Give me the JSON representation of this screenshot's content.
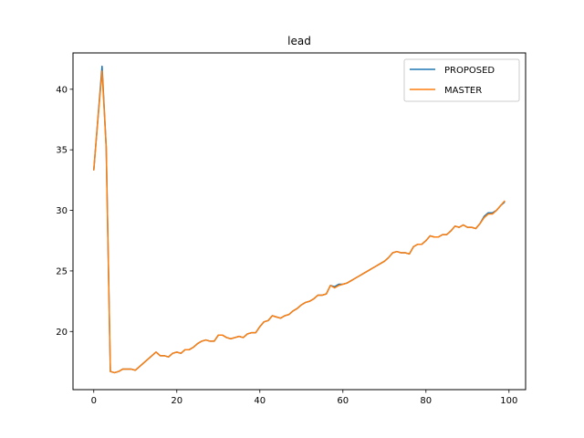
{
  "chart_data": {
    "type": "line",
    "title": "lead",
    "xlabel": "",
    "ylabel": "",
    "xlim": [
      -5,
      104
    ],
    "ylim": [
      15.2,
      43.0
    ],
    "xticks": [
      0,
      20,
      40,
      60,
      80,
      100
    ],
    "yticks": [
      20,
      25,
      30,
      35,
      40
    ],
    "legend_position": "top-right",
    "grid": false,
    "x": [
      0,
      1,
      2,
      3,
      4,
      5,
      6,
      7,
      8,
      9,
      10,
      11,
      12,
      13,
      14,
      15,
      16,
      17,
      18,
      19,
      20,
      21,
      22,
      23,
      24,
      25,
      26,
      27,
      28,
      29,
      30,
      31,
      32,
      33,
      34,
      35,
      36,
      37,
      38,
      39,
      40,
      41,
      42,
      43,
      44,
      45,
      46,
      47,
      48,
      49,
      50,
      51,
      52,
      53,
      54,
      55,
      56,
      57,
      58,
      59,
      60,
      61,
      62,
      63,
      64,
      65,
      66,
      67,
      68,
      69,
      70,
      71,
      72,
      73,
      74,
      75,
      76,
      77,
      78,
      79,
      80,
      81,
      82,
      83,
      84,
      85,
      86,
      87,
      88,
      89,
      90,
      91,
      92,
      93,
      94,
      95,
      96,
      97,
      98,
      99
    ],
    "series": [
      {
        "name": "PROPOSED",
        "color": "#1f77b4",
        "values": [
          33.3,
          37.6,
          41.9,
          35.2,
          16.7,
          16.6,
          16.7,
          16.9,
          16.9,
          16.9,
          16.8,
          17.1,
          17.4,
          17.7,
          18.0,
          18.3,
          18.0,
          18.0,
          17.9,
          18.2,
          18.3,
          18.2,
          18.5,
          18.5,
          18.7,
          19.0,
          19.2,
          19.3,
          19.2,
          19.2,
          19.7,
          19.7,
          19.5,
          19.4,
          19.5,
          19.6,
          19.5,
          19.8,
          19.9,
          19.9,
          20.4,
          20.8,
          20.9,
          21.3,
          21.2,
          21.1,
          21.3,
          21.4,
          21.7,
          21.9,
          22.2,
          22.4,
          22.5,
          22.7,
          23.0,
          23.0,
          23.1,
          23.8,
          23.7,
          23.9,
          23.9,
          24.0,
          24.2,
          24.4,
          24.6,
          24.8,
          25.0,
          25.2,
          25.4,
          25.6,
          25.8,
          26.1,
          26.5,
          26.6,
          26.5,
          26.5,
          26.4,
          27.0,
          27.2,
          27.2,
          27.5,
          27.9,
          27.8,
          27.8,
          28.0,
          28.0,
          28.3,
          28.7,
          28.6,
          28.8,
          28.6,
          28.6,
          28.5,
          28.9,
          29.5,
          29.8,
          29.8,
          30.0,
          30.4,
          30.7
        ]
      },
      {
        "name": "MASTER",
        "color": "#ff7f0e",
        "values": [
          33.3,
          37.5,
          41.5,
          35.2,
          16.7,
          16.6,
          16.7,
          16.9,
          16.9,
          16.9,
          16.8,
          17.1,
          17.4,
          17.7,
          18.0,
          18.3,
          18.0,
          18.0,
          17.9,
          18.2,
          18.3,
          18.2,
          18.5,
          18.5,
          18.7,
          19.0,
          19.2,
          19.3,
          19.2,
          19.2,
          19.7,
          19.7,
          19.5,
          19.4,
          19.5,
          19.6,
          19.5,
          19.8,
          19.9,
          19.9,
          20.4,
          20.8,
          20.9,
          21.3,
          21.2,
          21.1,
          21.3,
          21.4,
          21.7,
          21.9,
          22.2,
          22.4,
          22.5,
          22.7,
          23.0,
          23.0,
          23.1,
          23.8,
          23.6,
          23.8,
          23.9,
          24.0,
          24.2,
          24.4,
          24.6,
          24.8,
          25.0,
          25.2,
          25.4,
          25.6,
          25.8,
          26.1,
          26.5,
          26.6,
          26.5,
          26.5,
          26.4,
          27.0,
          27.2,
          27.2,
          27.5,
          27.9,
          27.8,
          27.8,
          28.0,
          28.0,
          28.3,
          28.7,
          28.6,
          28.8,
          28.6,
          28.6,
          28.5,
          28.9,
          29.4,
          29.7,
          29.7,
          30.0,
          30.4,
          30.8
        ]
      }
    ]
  }
}
